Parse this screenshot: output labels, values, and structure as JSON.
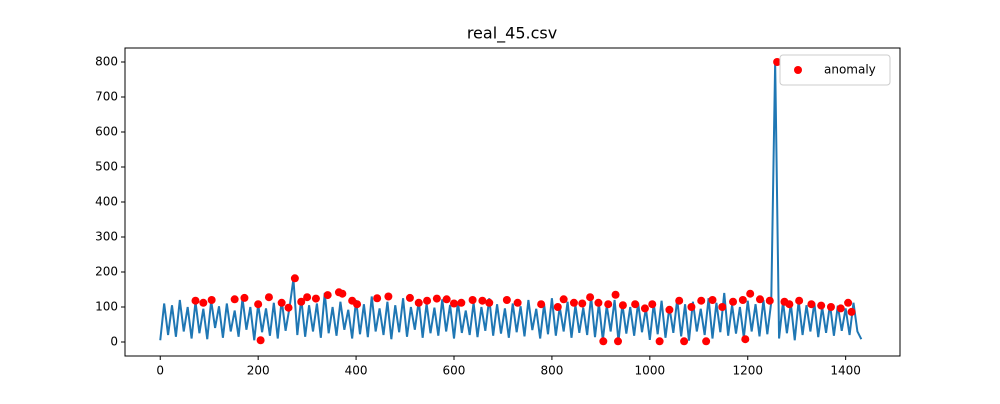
{
  "chart_data": {
    "type": "line",
    "title": "real_45.csv",
    "xlim": [
      -72,
      1511
    ],
    "ylim": [
      -40,
      840
    ],
    "xticks": [
      0,
      200,
      400,
      600,
      800,
      1000,
      1200,
      1400
    ],
    "yticks": [
      0,
      100,
      200,
      300,
      400,
      500,
      600,
      700,
      800
    ],
    "legend": "upper right",
    "series": [
      {
        "color": "#1f77b4",
        "x": [
          0,
          8,
          16,
          24,
          32,
          40,
          48,
          56,
          64,
          72,
          80,
          88,
          96,
          104,
          112,
          120,
          128,
          136,
          144,
          152,
          160,
          168,
          176,
          184,
          192,
          200,
          208,
          216,
          224,
          232,
          240,
          248,
          256,
          264,
          272,
          280,
          288,
          296,
          304,
          312,
          320,
          328,
          336,
          344,
          352,
          360,
          368,
          376,
          384,
          392,
          400,
          408,
          416,
          424,
          432,
          440,
          448,
          456,
          464,
          472,
          480,
          488,
          496,
          504,
          512,
          520,
          528,
          536,
          544,
          552,
          560,
          568,
          576,
          584,
          592,
          600,
          608,
          616,
          624,
          632,
          640,
          648,
          656,
          664,
          672,
          680,
          688,
          696,
          704,
          712,
          720,
          728,
          736,
          744,
          752,
          760,
          768,
          776,
          784,
          792,
          800,
          808,
          816,
          824,
          832,
          840,
          848,
          856,
          864,
          872,
          880,
          888,
          896,
          904,
          912,
          920,
          928,
          936,
          944,
          952,
          960,
          968,
          976,
          984,
          992,
          1000,
          1008,
          1016,
          1024,
          1032,
          1040,
          1048,
          1056,
          1064,
          1072,
          1080,
          1088,
          1096,
          1104,
          1112,
          1120,
          1128,
          1136,
          1144,
          1152,
          1160,
          1168,
          1176,
          1184,
          1192,
          1200,
          1208,
          1216,
          1224,
          1232,
          1240,
          1248,
          1256,
          1264,
          1272,
          1280,
          1288,
          1296,
          1304,
          1312,
          1320,
          1328,
          1336,
          1344,
          1352,
          1360,
          1368,
          1376,
          1384,
          1392,
          1400,
          1408,
          1416,
          1424,
          1432
        ],
        "values": [
          5,
          110,
          20,
          105,
          15,
          120,
          30,
          100,
          10,
          115,
          25,
          95,
          8,
          118,
          40,
          102,
          12,
          110,
          30,
          90,
          15,
          125,
          35,
          100,
          5,
          108,
          28,
          96,
          18,
          112,
          10,
          120,
          32,
          98,
          180,
          20,
          125,
          15,
          105,
          30,
          110,
          12,
          140,
          25,
          100,
          18,
          115,
          35,
          92,
          10,
          120,
          22,
          108,
          14,
          130,
          30,
          96,
          20,
          115,
          8,
          105,
          28,
          125,
          15,
          100,
          35,
          118,
          12,
          110,
          25,
          98,
          18,
          122,
          30,
          106,
          10,
          115,
          26,
          90,
          20,
          112,
          14,
          100,
          32,
          125,
          18,
          108,
          24,
          96,
          12,
          110,
          28,
          102,
          16,
          120,
          34,
          95,
          10,
          108,
          22,
          125,
          18,
          100,
          30,
          115,
          12,
          105,
          26,
          98,
          20,
          130,
          14,
          110,
          5,
          104,
          30,
          120,
          2,
          108,
          24,
          100,
          18,
          112,
          28,
          96,
          6,
          110,
          22,
          118,
          12,
          100,
          26,
          122,
          16,
          108,
          4,
          115,
          30,
          95,
          20,
          125,
          10,
          112,
          28,
          140,
          18,
          106,
          24,
          100,
          12,
          118,
          30,
          108,
          16,
          120,
          22,
          114,
          800,
          10,
          115,
          25,
          110,
          5,
          118,
          20,
          105,
          30,
          112,
          14,
          100,
          26,
          108,
          18,
          104,
          32,
          96,
          20,
          112,
          30,
          8
        ]
      },
      {
        "type": "scatter",
        "name": "anomaly",
        "color": "#ff0000",
        "x": [
          72,
          88,
          105,
          152,
          172,
          200,
          205,
          222,
          248,
          262,
          275,
          288,
          300,
          318,
          342,
          365,
          372,
          392,
          402,
          443,
          466,
          510,
          528,
          545,
          565,
          585,
          600,
          615,
          638,
          658,
          672,
          708,
          730,
          778,
          812,
          824,
          845,
          862,
          878,
          895,
          905,
          915,
          930,
          935,
          945,
          970,
          990,
          1005,
          1020,
          1040,
          1060,
          1070,
          1085,
          1105,
          1115,
          1128,
          1148,
          1170,
          1190,
          1195,
          1205,
          1225,
          1245,
          1260,
          1275,
          1285,
          1305,
          1330,
          1350,
          1370,
          1390,
          1405,
          1412
        ],
        "values": [
          118,
          112,
          120,
          122,
          126,
          108,
          5,
          128,
          112,
          98,
          182,
          115,
          128,
          124,
          134,
          142,
          138,
          118,
          108,
          125,
          130,
          126,
          112,
          118,
          124,
          122,
          110,
          112,
          120,
          118,
          112,
          120,
          112,
          108,
          100,
          122,
          112,
          110,
          128,
          112,
          2,
          108,
          135,
          2,
          105,
          108,
          96,
          108,
          2,
          92,
          118,
          2,
          100,
          118,
          2,
          120,
          100,
          115,
          120,
          8,
          138,
          122,
          118,
          800,
          115,
          108,
          118,
          108,
          104,
          100,
          96,
          112,
          86
        ]
      }
    ]
  }
}
